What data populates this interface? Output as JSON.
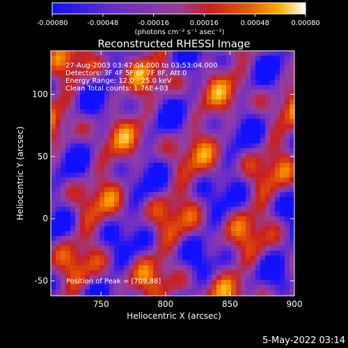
{
  "colors": {
    "background": "#000000",
    "text": "#ffffff",
    "colormap": [
      "#1010ff",
      "#6a2cc8",
      "#9640a0",
      "#c81e1e",
      "#e85a00",
      "#ffb000",
      "#ffffff"
    ]
  },
  "colorbar": {
    "ticks": [
      "-0.00080",
      "-0.00048",
      "-0.00016",
      "0.00016",
      "0.00048",
      "0.00080"
    ],
    "units_line": "(photons cm⁻² s⁻¹ asec⁻²)"
  },
  "footer": {
    "timestamp": "5-May-2022 03:14"
  },
  "chart_data": {
    "type": "heatmap",
    "title": "Reconstructed RHESSI Image",
    "xlabel": "Heliocentric X (arcsec)",
    "ylabel": "Heliocentric Y (arcsec)",
    "xlim": [
      711,
      900
    ],
    "ylim": [
      -62,
      135
    ],
    "xticks": [
      750,
      800,
      850,
      900
    ],
    "yticks": [
      -50,
      0,
      50,
      100
    ],
    "zlim": [
      -0.0008,
      0.0008
    ],
    "annotations": [
      "27-Aug-2003 03:47:04.000 to 03:53:04.000",
      "Detectors: 3F 4F 5F 6F 7F 8F, Att 0",
      "Energy Range: 12.0 - 25.0 keV",
      "Clean    Total counts: 1.76E+03"
    ],
    "peak_label": "Position of Peak = [709,88]",
    "peak": [
      709,
      88
    ]
  }
}
